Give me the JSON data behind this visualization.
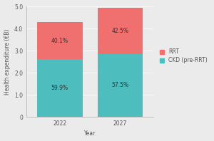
{
  "categories": [
    "2022",
    "2027"
  ],
  "ckd_values": [
    2.6,
    2.85
  ],
  "rrt_values": [
    1.7,
    2.1
  ],
  "ckd_pct": [
    "59.9%",
    "57.5%"
  ],
  "rrt_pct": [
    "40.1%",
    "42.5%"
  ],
  "ckd_color": "#4DBDBD",
  "rrt_color": "#F07070",
  "plot_bg_color": "#EBEBEB",
  "fig_bg_color": "#EBEBEB",
  "ylabel": "Health expenditure (€B)",
  "xlabel": "Year",
  "ylim": [
    0,
    5.0
  ],
  "yticks": [
    0,
    1.0,
    2.0,
    3.0,
    4.0,
    5.0
  ],
  "bar_width": 0.75,
  "legend_labels": [
    "RRT",
    "CKD (pre-RRT)"
  ],
  "label_fontsize": 5.5,
  "tick_fontsize": 5.5,
  "legend_fontsize": 5.5,
  "pct_fontsize": 5.5
}
